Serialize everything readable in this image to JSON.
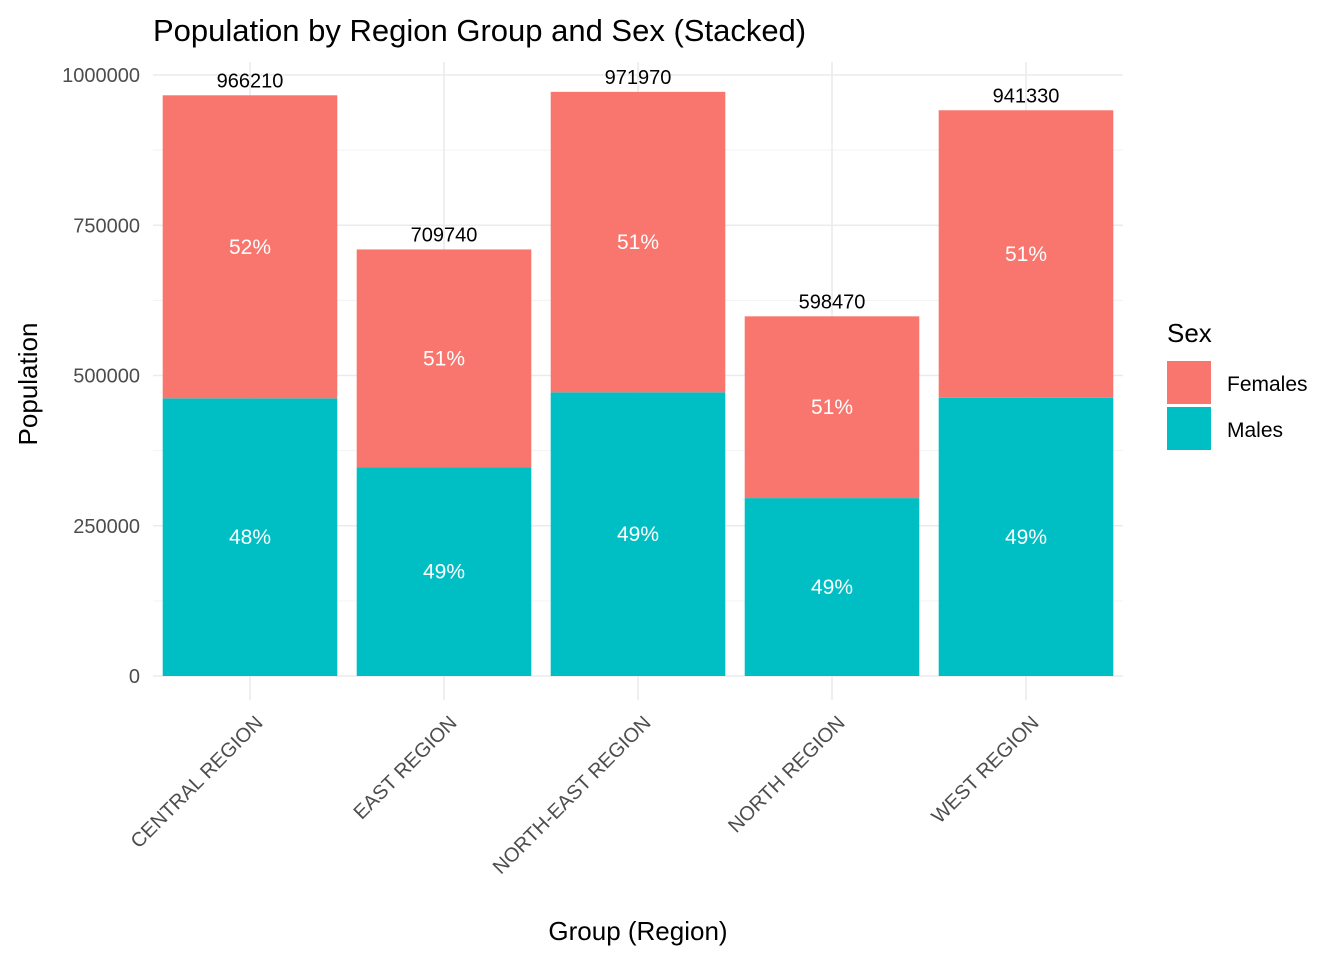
{
  "chart_data": {
    "type": "bar",
    "stacked": true,
    "title": "Population by Region Group and Sex (Stacked)",
    "xlabel": "Group (Region)",
    "ylabel": "Population",
    "ylim": [
      0,
      1000000
    ],
    "yticks": [
      "0",
      "250000",
      "500000",
      "750000",
      "1000000"
    ],
    "ytick_values": [
      0,
      250000,
      500000,
      750000,
      1000000
    ],
    "grid": true,
    "legend_position": "right",
    "legend_title": "Sex",
    "categories": [
      "CENTRAL REGION",
      "EAST REGION",
      "NORTH-EAST REGION",
      "NORTH REGION",
      "WEST REGION"
    ],
    "totals": [
      966210,
      709740,
      971970,
      598470,
      941330
    ],
    "total_labels": [
      "966210",
      "709740",
      "971970",
      "598470",
      "941330"
    ],
    "series": [
      {
        "name": "Males",
        "color": "#00BFC4",
        "values": [
          462000,
          347000,
          472000,
          296000,
          463000
        ],
        "labels": [
          "48%",
          "49%",
          "49%",
          "49%",
          "49%"
        ]
      },
      {
        "name": "Females",
        "color": "#F8766D",
        "values": [
          504210,
          362740,
          499970,
          302470,
          478330
        ],
        "labels": [
          "52%",
          "51%",
          "51%",
          "51%",
          "51%"
        ]
      }
    ],
    "legend_order": [
      "Females",
      "Males"
    ]
  }
}
